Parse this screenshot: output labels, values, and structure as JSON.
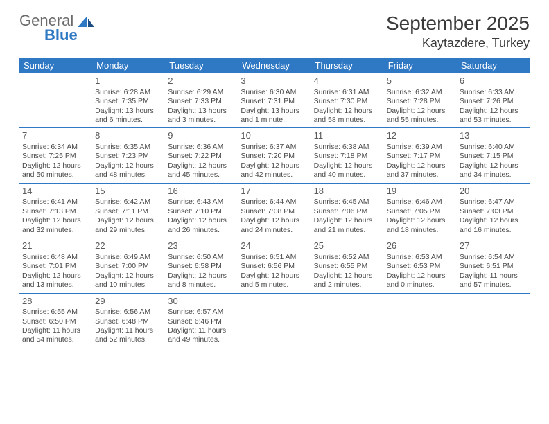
{
  "brand": {
    "name_top": "General",
    "name_bottom": "Blue"
  },
  "header": {
    "month": "September 2025",
    "location": "Kaytazdere, Turkey"
  },
  "colors": {
    "accent": "#2f78c4",
    "text": "#3a3a3a",
    "cell_text": "#4a4a4a",
    "bg": "#ffffff"
  },
  "day_headers": [
    "Sunday",
    "Monday",
    "Tuesday",
    "Wednesday",
    "Thursday",
    "Friday",
    "Saturday"
  ],
  "weeks": [
    [
      null,
      {
        "n": "1",
        "sr": "Sunrise: 6:28 AM",
        "ss": "Sunset: 7:35 PM",
        "dl": "Daylight: 13 hours and 6 minutes."
      },
      {
        "n": "2",
        "sr": "Sunrise: 6:29 AM",
        "ss": "Sunset: 7:33 PM",
        "dl": "Daylight: 13 hours and 3 minutes."
      },
      {
        "n": "3",
        "sr": "Sunrise: 6:30 AM",
        "ss": "Sunset: 7:31 PM",
        "dl": "Daylight: 13 hours and 1 minute."
      },
      {
        "n": "4",
        "sr": "Sunrise: 6:31 AM",
        "ss": "Sunset: 7:30 PM",
        "dl": "Daylight: 12 hours and 58 minutes."
      },
      {
        "n": "5",
        "sr": "Sunrise: 6:32 AM",
        "ss": "Sunset: 7:28 PM",
        "dl": "Daylight: 12 hours and 55 minutes."
      },
      {
        "n": "6",
        "sr": "Sunrise: 6:33 AM",
        "ss": "Sunset: 7:26 PM",
        "dl": "Daylight: 12 hours and 53 minutes."
      }
    ],
    [
      {
        "n": "7",
        "sr": "Sunrise: 6:34 AM",
        "ss": "Sunset: 7:25 PM",
        "dl": "Daylight: 12 hours and 50 minutes."
      },
      {
        "n": "8",
        "sr": "Sunrise: 6:35 AM",
        "ss": "Sunset: 7:23 PM",
        "dl": "Daylight: 12 hours and 48 minutes."
      },
      {
        "n": "9",
        "sr": "Sunrise: 6:36 AM",
        "ss": "Sunset: 7:22 PM",
        "dl": "Daylight: 12 hours and 45 minutes."
      },
      {
        "n": "10",
        "sr": "Sunrise: 6:37 AM",
        "ss": "Sunset: 7:20 PM",
        "dl": "Daylight: 12 hours and 42 minutes."
      },
      {
        "n": "11",
        "sr": "Sunrise: 6:38 AM",
        "ss": "Sunset: 7:18 PM",
        "dl": "Daylight: 12 hours and 40 minutes."
      },
      {
        "n": "12",
        "sr": "Sunrise: 6:39 AM",
        "ss": "Sunset: 7:17 PM",
        "dl": "Daylight: 12 hours and 37 minutes."
      },
      {
        "n": "13",
        "sr": "Sunrise: 6:40 AM",
        "ss": "Sunset: 7:15 PM",
        "dl": "Daylight: 12 hours and 34 minutes."
      }
    ],
    [
      {
        "n": "14",
        "sr": "Sunrise: 6:41 AM",
        "ss": "Sunset: 7:13 PM",
        "dl": "Daylight: 12 hours and 32 minutes."
      },
      {
        "n": "15",
        "sr": "Sunrise: 6:42 AM",
        "ss": "Sunset: 7:11 PM",
        "dl": "Daylight: 12 hours and 29 minutes."
      },
      {
        "n": "16",
        "sr": "Sunrise: 6:43 AM",
        "ss": "Sunset: 7:10 PM",
        "dl": "Daylight: 12 hours and 26 minutes."
      },
      {
        "n": "17",
        "sr": "Sunrise: 6:44 AM",
        "ss": "Sunset: 7:08 PM",
        "dl": "Daylight: 12 hours and 24 minutes."
      },
      {
        "n": "18",
        "sr": "Sunrise: 6:45 AM",
        "ss": "Sunset: 7:06 PM",
        "dl": "Daylight: 12 hours and 21 minutes."
      },
      {
        "n": "19",
        "sr": "Sunrise: 6:46 AM",
        "ss": "Sunset: 7:05 PM",
        "dl": "Daylight: 12 hours and 18 minutes."
      },
      {
        "n": "20",
        "sr": "Sunrise: 6:47 AM",
        "ss": "Sunset: 7:03 PM",
        "dl": "Daylight: 12 hours and 16 minutes."
      }
    ],
    [
      {
        "n": "21",
        "sr": "Sunrise: 6:48 AM",
        "ss": "Sunset: 7:01 PM",
        "dl": "Daylight: 12 hours and 13 minutes."
      },
      {
        "n": "22",
        "sr": "Sunrise: 6:49 AM",
        "ss": "Sunset: 7:00 PM",
        "dl": "Daylight: 12 hours and 10 minutes."
      },
      {
        "n": "23",
        "sr": "Sunrise: 6:50 AM",
        "ss": "Sunset: 6:58 PM",
        "dl": "Daylight: 12 hours and 8 minutes."
      },
      {
        "n": "24",
        "sr": "Sunrise: 6:51 AM",
        "ss": "Sunset: 6:56 PM",
        "dl": "Daylight: 12 hours and 5 minutes."
      },
      {
        "n": "25",
        "sr": "Sunrise: 6:52 AM",
        "ss": "Sunset: 6:55 PM",
        "dl": "Daylight: 12 hours and 2 minutes."
      },
      {
        "n": "26",
        "sr": "Sunrise: 6:53 AM",
        "ss": "Sunset: 6:53 PM",
        "dl": "Daylight: 12 hours and 0 minutes."
      },
      {
        "n": "27",
        "sr": "Sunrise: 6:54 AM",
        "ss": "Sunset: 6:51 PM",
        "dl": "Daylight: 11 hours and 57 minutes."
      }
    ],
    [
      {
        "n": "28",
        "sr": "Sunrise: 6:55 AM",
        "ss": "Sunset: 6:50 PM",
        "dl": "Daylight: 11 hours and 54 minutes."
      },
      {
        "n": "29",
        "sr": "Sunrise: 6:56 AM",
        "ss": "Sunset: 6:48 PM",
        "dl": "Daylight: 11 hours and 52 minutes."
      },
      {
        "n": "30",
        "sr": "Sunrise: 6:57 AM",
        "ss": "Sunset: 6:46 PM",
        "dl": "Daylight: 11 hours and 49 minutes."
      },
      null,
      null,
      null,
      null
    ]
  ]
}
